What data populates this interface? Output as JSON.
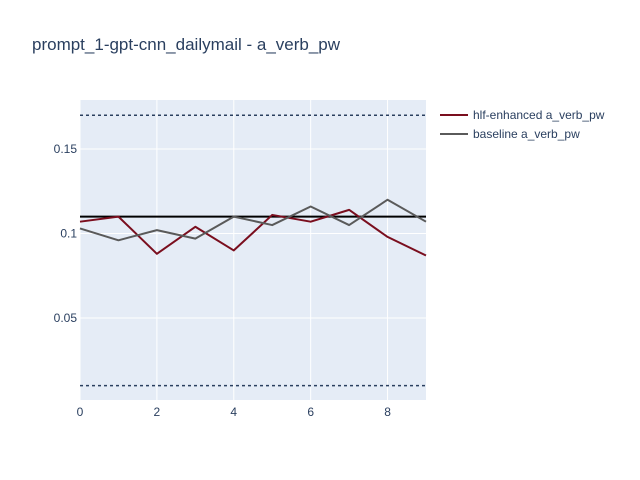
{
  "chart_data": {
    "type": "line",
    "title": "prompt_1-gpt-cnn_dailymail - a_verb_pw",
    "xlabel": "",
    "ylabel": "",
    "xlim": [
      0,
      9
    ],
    "ylim": [
      0.0015,
      0.179
    ],
    "x_ticks": [
      0,
      2,
      4,
      6,
      8
    ],
    "y_ticks": [
      0.05,
      0.1,
      0.15
    ],
    "y_tick_labels": [
      "0.05",
      "0.1",
      "0.15"
    ],
    "grid": true,
    "legend_position": "top-right",
    "x": [
      0,
      1,
      2,
      3,
      4,
      5,
      6,
      7,
      8,
      9
    ],
    "series": [
      {
        "name": "hlf-enhanced a_verb_pw",
        "color": "#7a0e1e",
        "values": [
          0.107,
          0.11,
          0.088,
          0.104,
          0.09,
          0.111,
          0.107,
          0.114,
          0.098,
          0.087
        ]
      },
      {
        "name": "baseline a_verb_pw",
        "color": "#5a5a5a",
        "values": [
          0.103,
          0.096,
          0.102,
          0.097,
          0.11,
          0.105,
          0.116,
          0.105,
          0.12,
          0.107
        ]
      }
    ],
    "reference_lines": [
      {
        "y": 0.11,
        "style": "solid",
        "color": "#000000"
      },
      {
        "y": 0.17,
        "style": "dotted",
        "color": "#2a3f5f"
      },
      {
        "y": 0.01,
        "style": "dotted",
        "color": "#2a3f5f"
      }
    ]
  }
}
